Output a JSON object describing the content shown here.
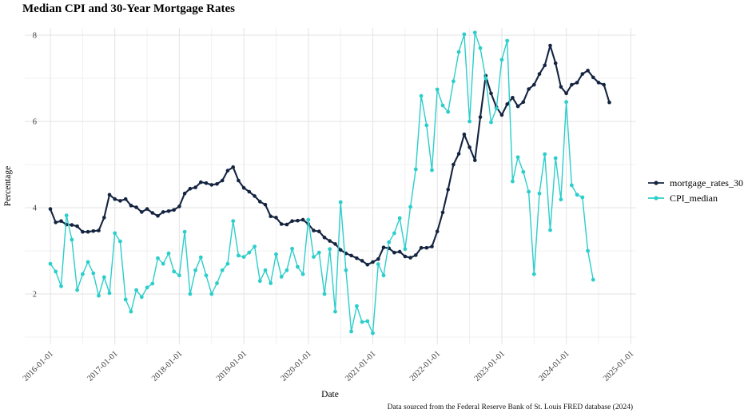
{
  "title": "Median CPI and 30-Year Mortgage Rates",
  "caption": "Data sourced from the Federal Reserve Bank of St. Louis FRED database (2024)",
  "chart_data": {
    "type": "line",
    "title": "Median CPI and 30-Year Mortgage Rates",
    "xlabel": "Date",
    "ylabel": "Percentage",
    "x_start": "2016-01",
    "x_interval": "monthly",
    "x_tick_labels": [
      "2016-01-01",
      "2017-01-01",
      "2018-01-01",
      "2019-01-01",
      "2020-01-01",
      "2021-01-01",
      "2022-01-01",
      "2023-01-01",
      "2024-01-01",
      "2025-01-01"
    ],
    "y_ticks": [
      2,
      4,
      6,
      8
    ],
    "y_minor_ticks": [
      1,
      3,
      5,
      7
    ],
    "ylim": [
      0.8,
      8.35
    ],
    "grid": true,
    "legend_position": "right",
    "series": [
      {
        "name": "mortgage_rates_30",
        "color": "#142440",
        "line_width": 2.1,
        "point_radius": 2.3,
        "values": [
          3.97,
          3.66,
          3.69,
          3.61,
          3.6,
          3.57,
          3.44,
          3.44,
          3.46,
          3.47,
          3.77,
          4.3,
          4.2,
          4.16,
          4.2,
          4.05,
          4.01,
          3.9,
          3.97,
          3.88,
          3.81,
          3.9,
          3.92,
          3.95,
          4.03,
          4.33,
          4.44,
          4.47,
          4.59,
          4.57,
          4.53,
          4.55,
          4.63,
          4.86,
          4.94,
          4.63,
          4.46,
          4.37,
          4.27,
          4.14,
          4.07,
          3.8,
          3.77,
          3.62,
          3.61,
          3.69,
          3.7,
          3.72,
          3.62,
          3.47,
          3.45,
          3.31,
          3.23,
          3.16,
          3.02,
          2.94,
          2.89,
          2.83,
          2.77,
          2.68,
          2.74,
          2.81,
          3.08,
          3.06,
          2.96,
          2.98,
          2.87,
          2.84,
          2.9,
          3.07,
          3.07,
          3.1,
          3.45,
          3.89,
          4.42,
          5.0,
          5.25,
          5.7,
          5.4,
          5.1,
          6.1,
          7.06,
          6.65,
          6.33,
          6.15,
          6.4,
          6.55,
          6.35,
          6.45,
          6.75,
          6.85,
          7.1,
          7.3,
          7.76,
          7.35,
          6.8,
          6.65,
          6.85,
          6.9,
          7.1,
          7.18,
          7.02,
          6.9,
          6.85,
          6.44
        ]
      },
      {
        "name": "CPI_median",
        "color": "#2bcecb",
        "line_width": 1.4,
        "point_radius": 2.4,
        "values": [
          2.7,
          2.52,
          2.18,
          3.82,
          3.26,
          2.09,
          2.46,
          2.74,
          2.48,
          1.96,
          2.39,
          2.02,
          3.41,
          3.22,
          1.87,
          1.59,
          2.09,
          1.93,
          2.15,
          2.24,
          2.83,
          2.7,
          2.94,
          2.52,
          2.43,
          3.44,
          2.0,
          2.55,
          2.85,
          2.43,
          2.0,
          2.25,
          2.55,
          2.7,
          3.69,
          2.89,
          2.86,
          2.96,
          3.1,
          2.3,
          2.55,
          2.25,
          2.92,
          2.4,
          2.55,
          3.05,
          2.63,
          2.46,
          3.72,
          2.86,
          2.96,
          2.0,
          3.04,
          1.59,
          4.13,
          2.55,
          1.13,
          1.72,
          1.35,
          1.37,
          1.09,
          2.69,
          2.43,
          3.2,
          3.41,
          3.76,
          3.04,
          4.02,
          4.89,
          6.59,
          5.91,
          4.87,
          6.74,
          6.37,
          6.22,
          6.93,
          7.61,
          8.02,
          6.0,
          8.06,
          7.7,
          7.0,
          5.98,
          6.3,
          7.43,
          7.87,
          4.61,
          5.17,
          4.83,
          4.37,
          2.46,
          4.33,
          5.24,
          3.48,
          5.15,
          4.19,
          6.45,
          4.52,
          4.3,
          4.24,
          3.0,
          2.33
        ]
      }
    ]
  },
  "legend": {
    "items": [
      "mortgage_rates_30",
      "CPI_median"
    ]
  }
}
